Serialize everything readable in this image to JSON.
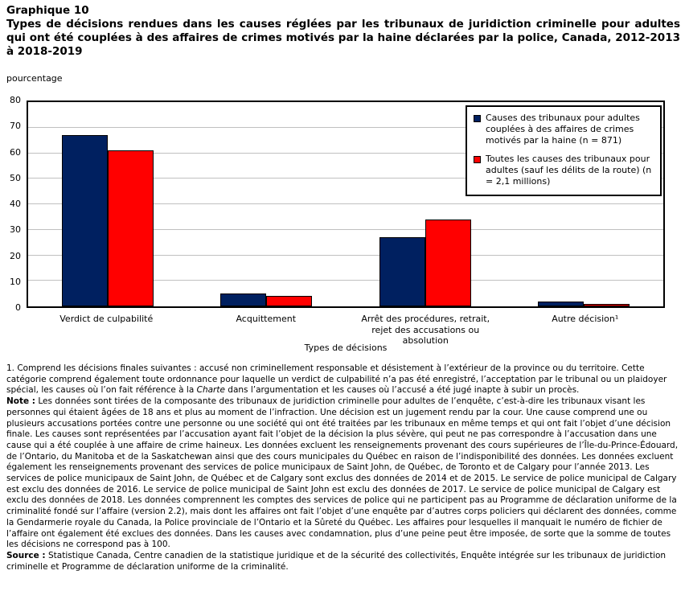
{
  "page": {
    "title_label": "Graphique 10",
    "title_text": "Types de décisions rendues dans les causes réglées par les tribunaux de juridiction criminelle pour adultes qui ont été couplées à des affaires de crimes motivés par la haine déclarées par la police, Canada, 2012-2013 à 2018-2019"
  },
  "chart_data": {
    "type": "bar",
    "title": "Types de décisions rendues dans les causes réglées par les tribunaux de juridiction criminelle pour adultes qui ont été couplées à des affaires de crimes motivés par la haine déclarées par la police, Canada, 2012-2013 à 2018-2019",
    "ylabel": "pourcentage",
    "xlabel": "Types de décisions",
    "ylim": [
      0,
      80
    ],
    "ytick_step": 10,
    "grid": true,
    "legend_position": "top-right",
    "categories": [
      "Verdict de culpabilité",
      "Acquittement",
      "Arrêt des procédures, retrait, rejet des accusations ou absolution",
      "Autre décision¹"
    ],
    "series": [
      {
        "name": "Causes des tribunaux pour adultes couplées à des affaires de crimes motivés par la haine (n = 871)",
        "color": "#002060",
        "values": [
          67,
          5,
          27,
          2
        ]
      },
      {
        "name": "Toutes les causes des tribunaux pour adultes (sauf les délits de la route) (n = 2,1 millions)",
        "color": "#FF0000",
        "values": [
          61,
          4,
          34,
          1
        ]
      }
    ]
  },
  "notes": {
    "footnote1_pre": "1. Comprend les décisions finales suivantes : accusé non criminellement responsable et désistement à l’extérieur de la province ou du territoire. Cette catégorie comprend également toute ordonnance pour laquelle un verdict de culpabilité n’a pas été enregistré, l’acceptation par le tribunal ou un plaidoyer spécial, les causes où l’on fait référence à la ",
    "footnote1_italic": "Charte",
    "footnote1_post": " dans l’argumentation et les causes où l’accusé a été jugé inapte à subir un procès.",
    "note_label": "Note :",
    "note_text": "Les données sont tirées de la composante des tribunaux de juridiction criminelle pour adultes de l’enquête, c’est-à-dire les tribunaux visant les personnes qui étaient âgées de 18 ans et plus au moment de l’infraction. Une décision est un jugement rendu par la cour. Une cause comprend une ou plusieurs accusations portées contre une personne ou une société qui ont été traitées par les tribunaux en même temps et qui ont fait l’objet d’une décision finale. Les causes sont représentées par l’accusation ayant fait l’objet de la décision la plus sévère, qui peut ne pas correspondre à l’accusation dans une cause qui a été couplée à une affaire de crime haineux. Les données excluent les renseignements provenant des cours supérieures de l’Île-du-Prince-Édouard, de l’Ontario, du Manitoba et de la Saskatchewan ainsi que des cours municipales du Québec en raison de l’indisponibilité des données. Les données excluent également les renseignements provenant des services de police municipaux de Saint John, de Québec, de Toronto et de Calgary pour l’année 2013. Les services de police municipaux de Saint John, de Québec et de Calgary sont exclus des données de 2014 et de 2015. Le service de police municipal de Calgary est exclu des données de 2016. Le service de police municipal de Saint John est exclu des données de 2017. Le service de police municipal de Calgary est exclu des données de 2018. Les données comprennent les comptes des services de police qui ne participent pas au Programme de déclaration uniforme de la criminalité fondé sur l’affaire (version 2.2), mais dont les affaires ont fait l’objet d’une enquête par d’autres corps policiers qui déclarent des données, comme la Gendarmerie royale du Canada, la Police provinciale de l’Ontario et la Sûreté du Québec. Les affaires pour lesquelles il manquait le numéro de fichier de l’affaire ont également été exclues des données. Dans les causes avec condamnation, plus d’une peine peut être imposée, de sorte que la somme de toutes les décisions ne correspond pas à 100.",
    "source_label": "Source :",
    "source_text": "Statistique Canada, Centre canadien de la statistique juridique et de la sécurité des collectivités, Enquête intégrée sur les tribunaux de juridiction criminelle et Programme de déclaration uniforme de la criminalité."
  },
  "colors": {
    "gridline": "#C0C0C0",
    "axis_frame": "#000000",
    "background": "#FFFFFF"
  }
}
